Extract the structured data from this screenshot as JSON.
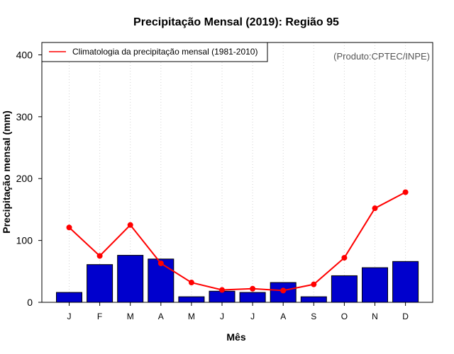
{
  "chart_data": {
    "type": "bar",
    "title": "Precipitação Mensal (2019): Região 95",
    "xlabel": "Mês",
    "ylabel": "Precipitação mensal (mm)",
    "categories": [
      "J",
      "F",
      "M",
      "A",
      "M",
      "J",
      "J",
      "A",
      "S",
      "O",
      "N",
      "D"
    ],
    "ylim": [
      0,
      420
    ],
    "yticks": [
      0,
      100,
      200,
      300,
      400
    ],
    "grid": true,
    "series": [
      {
        "name": "Precipitação mensal (2019)",
        "kind": "bar",
        "color": "#0000CD",
        "values": [
          16,
          61,
          76,
          70,
          9,
          18,
          16,
          32,
          9,
          43,
          56,
          66
        ]
      },
      {
        "name": "Climatologia da precipitação mensal (1981-2010)",
        "kind": "line",
        "color": "#FF0000",
        "values": [
          121,
          75,
          125,
          63,
          32,
          20,
          22,
          19,
          29,
          72,
          152,
          178
        ]
      }
    ],
    "legend": {
      "position": "top-left",
      "entries": [
        "Climatologia da precipitação mensal (1981-2010)"
      ]
    },
    "annotation": "(Produto:CPTEC/INPE)"
  }
}
